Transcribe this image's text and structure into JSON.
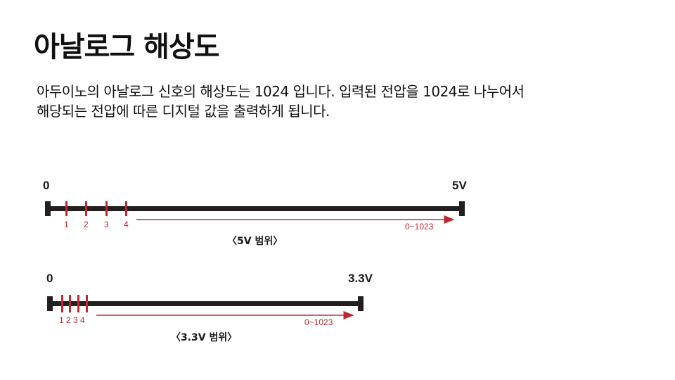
{
  "slide": {
    "title": "아날로그 해상도",
    "description_lines": [
      "아두이노의 아날로그 신호의 해상도는 1024 입니다. 입력된 전압을 1024로 나누어서",
      "해당되는 전압에 따른 디지털 값을 출력하게 됩니다."
    ]
  },
  "diagrams": [
    {
      "start_label": "0",
      "end_label": "5V",
      "ticks": [
        "1",
        "2",
        "3",
        "4"
      ],
      "range_label": "0~1023",
      "caption": "〈5V 범위〉"
    },
    {
      "start_label": "0",
      "end_label": "3.3V",
      "ticks_label": "1 2 3 4",
      "range_label": "0~1023",
      "caption": "〈3.3V 범위〉"
    }
  ],
  "colors": {
    "bar": "#231f20",
    "accent": "#c0282d"
  }
}
